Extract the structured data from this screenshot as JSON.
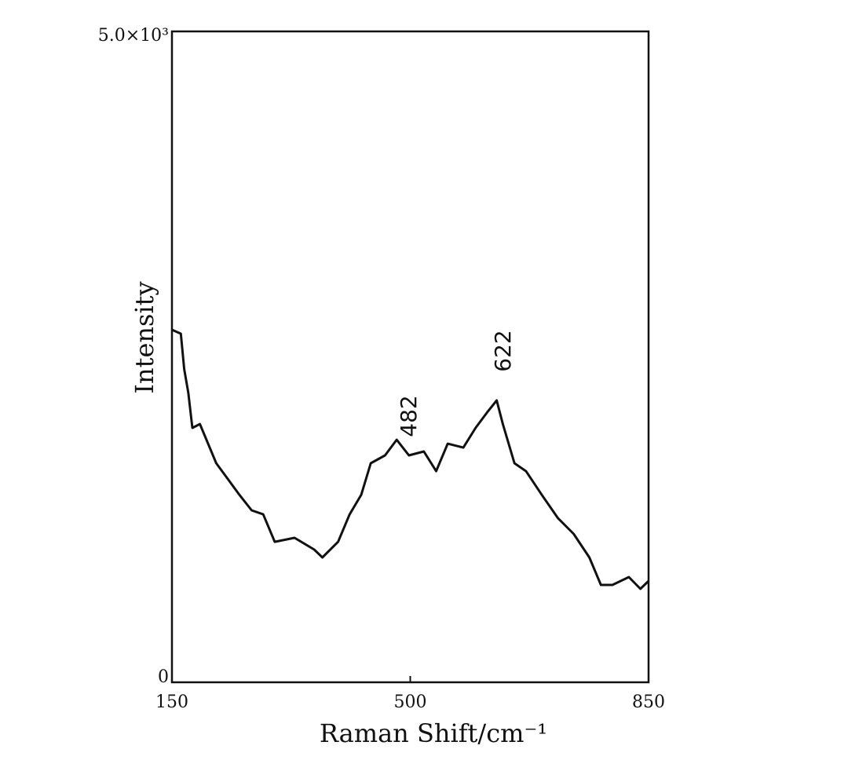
{
  "chart_data": {
    "type": "line",
    "xlabel": "Raman Shift/cm⁻¹",
    "ylabel": "Intensity",
    "x": [
      150,
      163,
      168,
      174,
      180,
      191,
      203,
      215,
      232,
      249,
      267,
      284,
      301,
      330,
      359,
      371,
      394,
      411,
      428,
      442,
      463,
      480,
      498,
      520,
      538,
      555,
      578,
      596,
      613,
      627,
      636,
      653,
      670,
      693,
      717,
      740,
      763,
      780,
      797,
      821,
      838,
      850
    ],
    "series": [
      {
        "color": "#111111",
        "values": [
          2708,
          2678,
          2406,
          2225,
          1954,
          1984,
          1833,
          1683,
          1562,
          1441,
          1321,
          1290,
          1079,
          1110,
          1019,
          959,
          1079,
          1290,
          1441,
          1683,
          1743,
          1863,
          1743,
          1773,
          1622,
          1833,
          1803,
          1954,
          2074,
          2165,
          1984,
          1683,
          1622,
          1441,
          1260,
          1140,
          959,
          748,
          748,
          808,
          718,
          778
        ]
      }
    ],
    "xlim": [
      150,
      850
    ],
    "xticks": [
      150,
      500,
      850
    ],
    "ylim": [
      0,
      5000
    ],
    "yticks": [
      0,
      {
        "value": 5000,
        "label": "5.0×10³"
      }
    ],
    "annotations": [
      "482",
      "622"
    ]
  }
}
